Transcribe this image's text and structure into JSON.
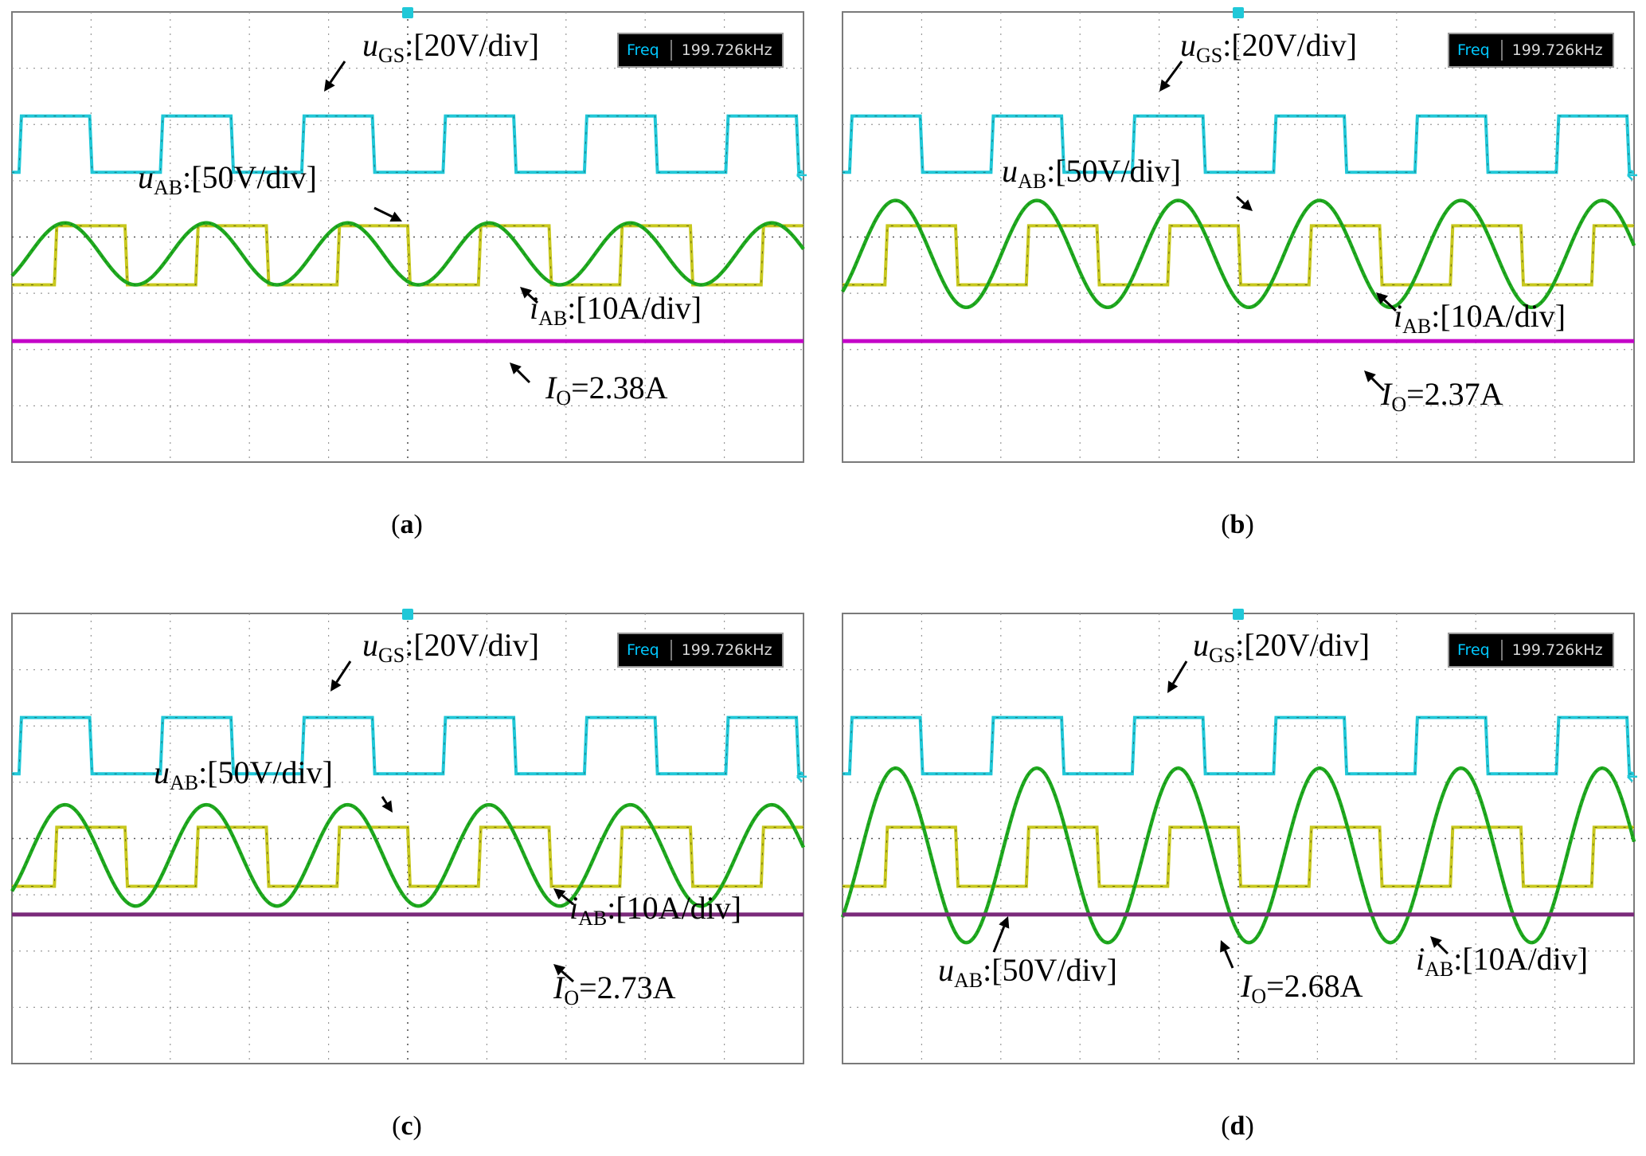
{
  "chart_data": [
    {
      "type": "line",
      "panel": "(a)",
      "caption_letter": "a",
      "freq": {
        "key": "Freq",
        "value": "199.726kHz"
      },
      "labels": {
        "ugs": {
          "sym": "u",
          "sub": "GS",
          "scale": ":[20V/div]"
        },
        "uab": {
          "sym": "u",
          "sub": "AB",
          "scale": ":[50V/div]"
        },
        "iab": {
          "sym": "i",
          "sub": "AB",
          "scale": ":[10A/div]"
        },
        "io": {
          "sym": "I",
          "sub": "O",
          "value": "=2.38A"
        }
      },
      "grid": {
        "x_divisions": 10,
        "y_divisions": 8
      },
      "series": [
        {
          "trace": "uGS",
          "color": "#20c8d8",
          "levels_div": [
            1.85,
            2.85
          ],
          "duty": 0.5,
          "cycles": 5.6,
          "phase": 0.05
        },
        {
          "trace": "uAB",
          "color": "#c8c81e",
          "levels_div": [
            3.8,
            4.85
          ],
          "cycles": 5.6,
          "phase": 0.05
        },
        {
          "trace": "iAB",
          "color": "#1faa1f",
          "center_div": 4.3,
          "amp_div": 0.55,
          "cycles": 5.6,
          "phase": 0.05
        },
        {
          "trace": "IO",
          "color": "#c400c8",
          "level_div": 5.85
        }
      ]
    },
    {
      "type": "line",
      "panel": "(b)",
      "caption_letter": "b",
      "freq": {
        "key": "Freq",
        "value": "199.726kHz"
      },
      "labels": {
        "ugs": {
          "sym": "u",
          "sub": "GS",
          "scale": ":[20V/div]"
        },
        "uab": {
          "sym": "u",
          "sub": "AB",
          "scale": ":[50V/div]"
        },
        "iab": {
          "sym": "i",
          "sub": "AB",
          "scale": ":[10A/div]"
        },
        "io": {
          "sym": "I",
          "sub": "O",
          "value": "=2.37A"
        }
      },
      "grid": {
        "x_divisions": 10,
        "y_divisions": 8
      },
      "series": [
        {
          "trace": "uGS",
          "color": "#20c8d8",
          "levels_div": [
            1.85,
            2.85
          ],
          "duty": 0.5,
          "cycles": 5.6,
          "phase": 0.05
        },
        {
          "trace": "uAB",
          "color": "#c8c81e",
          "levels_div": [
            3.8,
            4.85
          ],
          "cycles": 5.6,
          "phase": 0.05
        },
        {
          "trace": "iAB",
          "color": "#1faa1f",
          "center_div": 4.3,
          "amp_div": 0.95,
          "cycles": 5.6,
          "phase": 0.05
        },
        {
          "trace": "IO",
          "color": "#c400c8",
          "level_div": 5.85
        }
      ]
    },
    {
      "type": "line",
      "panel": "(c)",
      "caption_letter": "c",
      "freq": {
        "key": "Freq",
        "value": "199.726kHz"
      },
      "labels": {
        "ugs": {
          "sym": "u",
          "sub": "GS",
          "scale": ":[20V/div]"
        },
        "uab": {
          "sym": "u",
          "sub": "AB",
          "scale": ":[50V/div]"
        },
        "iab": {
          "sym": "i",
          "sub": "AB",
          "scale": ":[10A/div]"
        },
        "io": {
          "sym": "I",
          "sub": "O",
          "value": "=2.73A"
        }
      },
      "grid": {
        "x_divisions": 10,
        "y_divisions": 8
      },
      "series": [
        {
          "trace": "uGS",
          "color": "#20c8d8",
          "levels_div": [
            1.85,
            2.85
          ],
          "duty": 0.5,
          "cycles": 5.6,
          "phase": 0.05
        },
        {
          "trace": "uAB",
          "color": "#c8c81e",
          "levels_div": [
            3.8,
            4.85
          ],
          "cycles": 5.6,
          "phase": 0.05
        },
        {
          "trace": "iAB",
          "color": "#1faa1f",
          "center_div": 4.3,
          "amp_div": 0.9,
          "cycles": 5.6,
          "phase": 0.05
        },
        {
          "trace": "IO",
          "color": "#7a2a7a",
          "level_div": 5.35
        }
      ]
    },
    {
      "type": "line",
      "panel": "(d)",
      "caption_letter": "d",
      "freq": {
        "key": "Freq",
        "value": "199.726kHz"
      },
      "labels": {
        "ugs": {
          "sym": "u",
          "sub": "GS",
          "scale": ":[20V/div]"
        },
        "uab": {
          "sym": "u",
          "sub": "AB",
          "scale": ":[50V/div]"
        },
        "iab": {
          "sym": "i",
          "sub": "AB",
          "scale": ":[10A/div]"
        },
        "io": {
          "sym": "I",
          "sub": "O",
          "value": "=2.68A"
        }
      },
      "grid": {
        "x_divisions": 10,
        "y_divisions": 8
      },
      "series": [
        {
          "trace": "uGS",
          "color": "#20c8d8",
          "levels_div": [
            1.85,
            2.85
          ],
          "duty": 0.5,
          "cycles": 5.6,
          "phase": 0.05
        },
        {
          "trace": "uAB",
          "color": "#c8c81e",
          "levels_div": [
            3.8,
            4.85
          ],
          "cycles": 5.6,
          "phase": 0.05
        },
        {
          "trace": "iAB",
          "color": "#1faa1f",
          "center_div": 4.3,
          "amp_div": 1.55,
          "cycles": 5.6,
          "phase": 0.05
        },
        {
          "trace": "IO",
          "color": "#7a2a7a",
          "level_div": 5.35
        }
      ]
    }
  ]
}
